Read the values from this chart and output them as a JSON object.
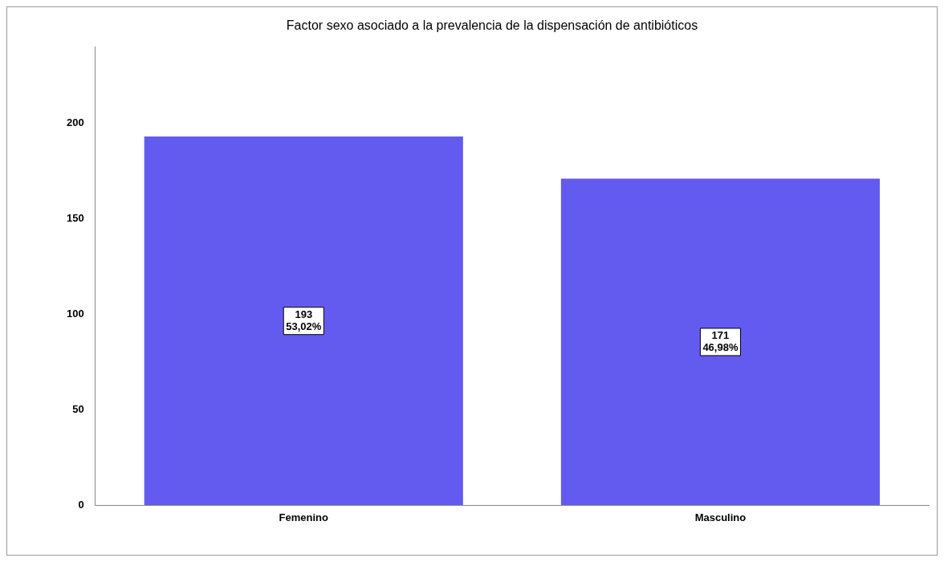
{
  "chart_data": {
    "type": "bar",
    "title": "Factor sexo asociado a la prevalencia de la dispensación de antibióticos",
    "categories": [
      "Femenino",
      "Masculino"
    ],
    "values": [
      193,
      171
    ],
    "color": "#635bef",
    "value_labels": [
      "193\n53,02%",
      "171\n46,98%"
    ],
    "ylim": [
      0,
      240
    ],
    "yticks": [
      0,
      50,
      100,
      150,
      200
    ],
    "grid": false,
    "legend": false
  }
}
